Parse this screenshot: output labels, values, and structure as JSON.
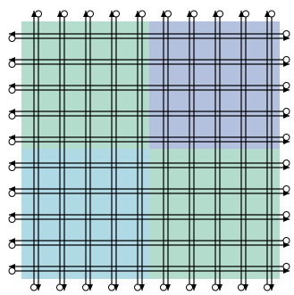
{
  "quadrants": [
    {
      "id": "top-left",
      "color": "#b3dccc"
    },
    {
      "id": "top-right",
      "color": "#b3c1df"
    },
    {
      "id": "bottom-left",
      "color": "#b0d9e6"
    },
    {
      "id": "bottom-right",
      "color": "#b3dccc"
    }
  ],
  "line_color": "#000000",
  "vertical_lines": [
    {
      "direction": "up"
    },
    {
      "direction": "down"
    },
    {
      "direction": "up"
    },
    {
      "direction": "down"
    },
    {
      "direction": "up"
    },
    {
      "direction": "down"
    },
    {
      "direction": "up"
    },
    {
      "direction": "down"
    },
    {
      "direction": "up"
    },
    {
      "direction": "down"
    },
    {
      "direction": "up"
    },
    {
      "direction": "down"
    },
    {
      "direction": "up"
    },
    {
      "direction": "down"
    },
    {
      "direction": "up"
    },
    {
      "direction": "down"
    },
    {
      "direction": "up"
    },
    {
      "direction": "down"
    },
    {
      "direction": "up"
    },
    {
      "direction": "down"
    }
  ],
  "horizontal_lines": [
    {
      "direction": "left"
    },
    {
      "direction": "right"
    },
    {
      "direction": "left"
    },
    {
      "direction": "right"
    },
    {
      "direction": "left"
    },
    {
      "direction": "right"
    },
    {
      "direction": "left"
    },
    {
      "direction": "right"
    },
    {
      "direction": "left"
    },
    {
      "direction": "right"
    },
    {
      "direction": "left"
    },
    {
      "direction": "right"
    },
    {
      "direction": "left"
    },
    {
      "direction": "right"
    },
    {
      "direction": "left"
    },
    {
      "direction": "right"
    },
    {
      "direction": "left"
    },
    {
      "direction": "right"
    },
    {
      "direction": "left"
    },
    {
      "direction": "right"
    }
  ]
}
